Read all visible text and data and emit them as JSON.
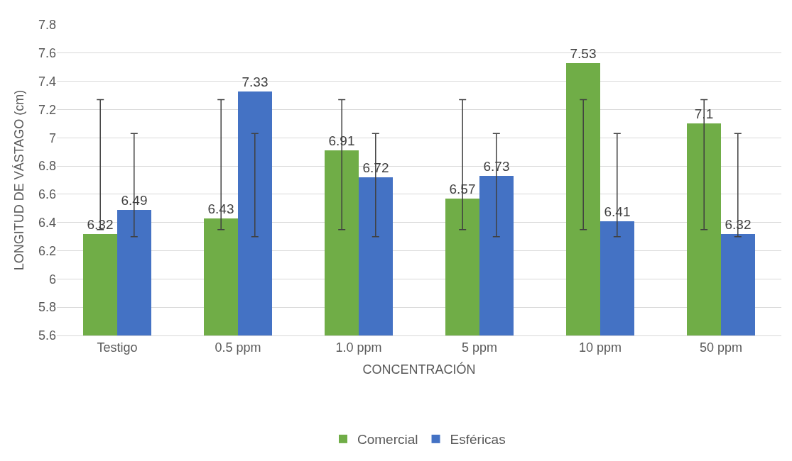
{
  "chart_data": {
    "type": "bar",
    "xlabel": "CONCENTRACIÓN",
    "ylabel": "LONGITUD DE VÁSTAGO (cm)",
    "categories": [
      "Testigo",
      "0.5 ppm",
      "1.0 ppm",
      "5 ppm",
      "10 ppm",
      "50 ppm"
    ],
    "series": [
      {
        "name": "Comercial",
        "color": "#70ad47",
        "values": [
          6.32,
          6.43,
          6.91,
          6.57,
          7.53,
          7.1
        ],
        "errors": [
          [
            6.35,
            7.27
          ],
          [
            6.35,
            7.27
          ],
          [
            6.35,
            7.27
          ],
          [
            6.35,
            7.27
          ],
          [
            6.35,
            7.27
          ],
          [
            6.35,
            7.27
          ]
        ]
      },
      {
        "name": "Esféricas",
        "color": "#4472c4",
        "values": [
          6.49,
          7.33,
          6.72,
          6.73,
          6.41,
          6.32
        ],
        "errors": [
          [
            6.3,
            7.03
          ],
          [
            6.3,
            7.03
          ],
          [
            6.3,
            7.03
          ],
          [
            6.3,
            7.03
          ],
          [
            6.3,
            7.03
          ],
          [
            6.3,
            7.03
          ]
        ]
      }
    ],
    "ylim": [
      5.6,
      7.8
    ],
    "yticks": [
      5.6,
      5.8,
      6,
      6.2,
      6.4,
      6.6,
      6.8,
      7,
      7.2,
      7.4,
      7.6,
      7.8
    ],
    "grid": "y",
    "legend": "bottom",
    "data_labels": true
  }
}
